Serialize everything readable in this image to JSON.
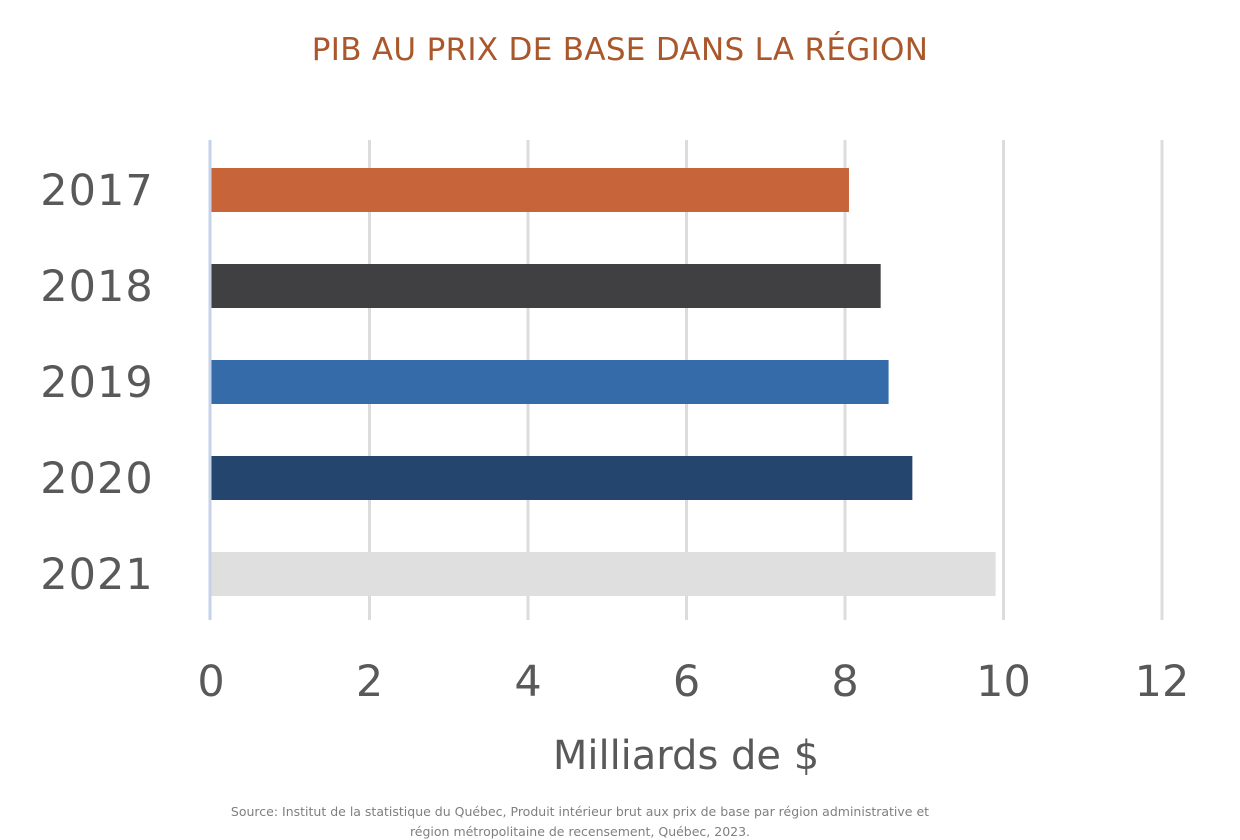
{
  "chart_data": {
    "type": "bar",
    "orientation": "horizontal",
    "title": "PIB AU PRIX DE BASE DANS LA RÉGION",
    "xlabel": "Milliards de $",
    "ylabel": "",
    "categories": [
      "2017",
      "2018",
      "2019",
      "2020",
      "2021"
    ],
    "values": [
      8.05,
      8.45,
      8.55,
      8.85,
      9.9
    ],
    "bar_colors": [
      "#c8643a",
      "#404043",
      "#356ba9",
      "#24456d",
      "#dfdfdf"
    ],
    "xlim": [
      0,
      12
    ],
    "xticks": [
      "0",
      "2",
      "4",
      "6",
      "8",
      "10",
      "12"
    ],
    "grid": "vertical",
    "legend": "none"
  },
  "source": "Source: Institut de la statistique du Québec, Produit intérieur brut aux prix de base par région administrative et région métropolitaine de recensement, Québec, 2023."
}
